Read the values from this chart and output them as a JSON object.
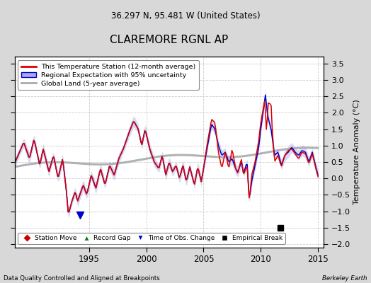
{
  "title": "CLAREMORE RGNL AP",
  "subtitle": "36.297 N, 95.481 W (United States)",
  "ylabel": "Temperature Anomaly (°C)",
  "footer_left": "Data Quality Controlled and Aligned at Breakpoints",
  "footer_right": "Berkeley Earth",
  "xlim": [
    1988.5,
    2015.5
  ],
  "ylim": [
    -2.1,
    3.7
  ],
  "yticks": [
    -2,
    -1.5,
    -1,
    -0.5,
    0,
    0.5,
    1,
    1.5,
    2,
    2.5,
    3,
    3.5
  ],
  "xticks": [
    1995,
    2000,
    2005,
    2010,
    2015
  ],
  "bg_color": "#d8d8d8",
  "plot_bg_color": "#ffffff",
  "grid_color": "#cccccc",
  "station_color": "#dd0000",
  "regional_color": "#0000cc",
  "regional_fill_color": "#aaaadd",
  "global_color": "#aaaaaa",
  "empirical_break_x": 2011.7,
  "empirical_break_y": -1.5,
  "time_obs_change_x": 1994.2,
  "time_obs_change_y": -1.12
}
